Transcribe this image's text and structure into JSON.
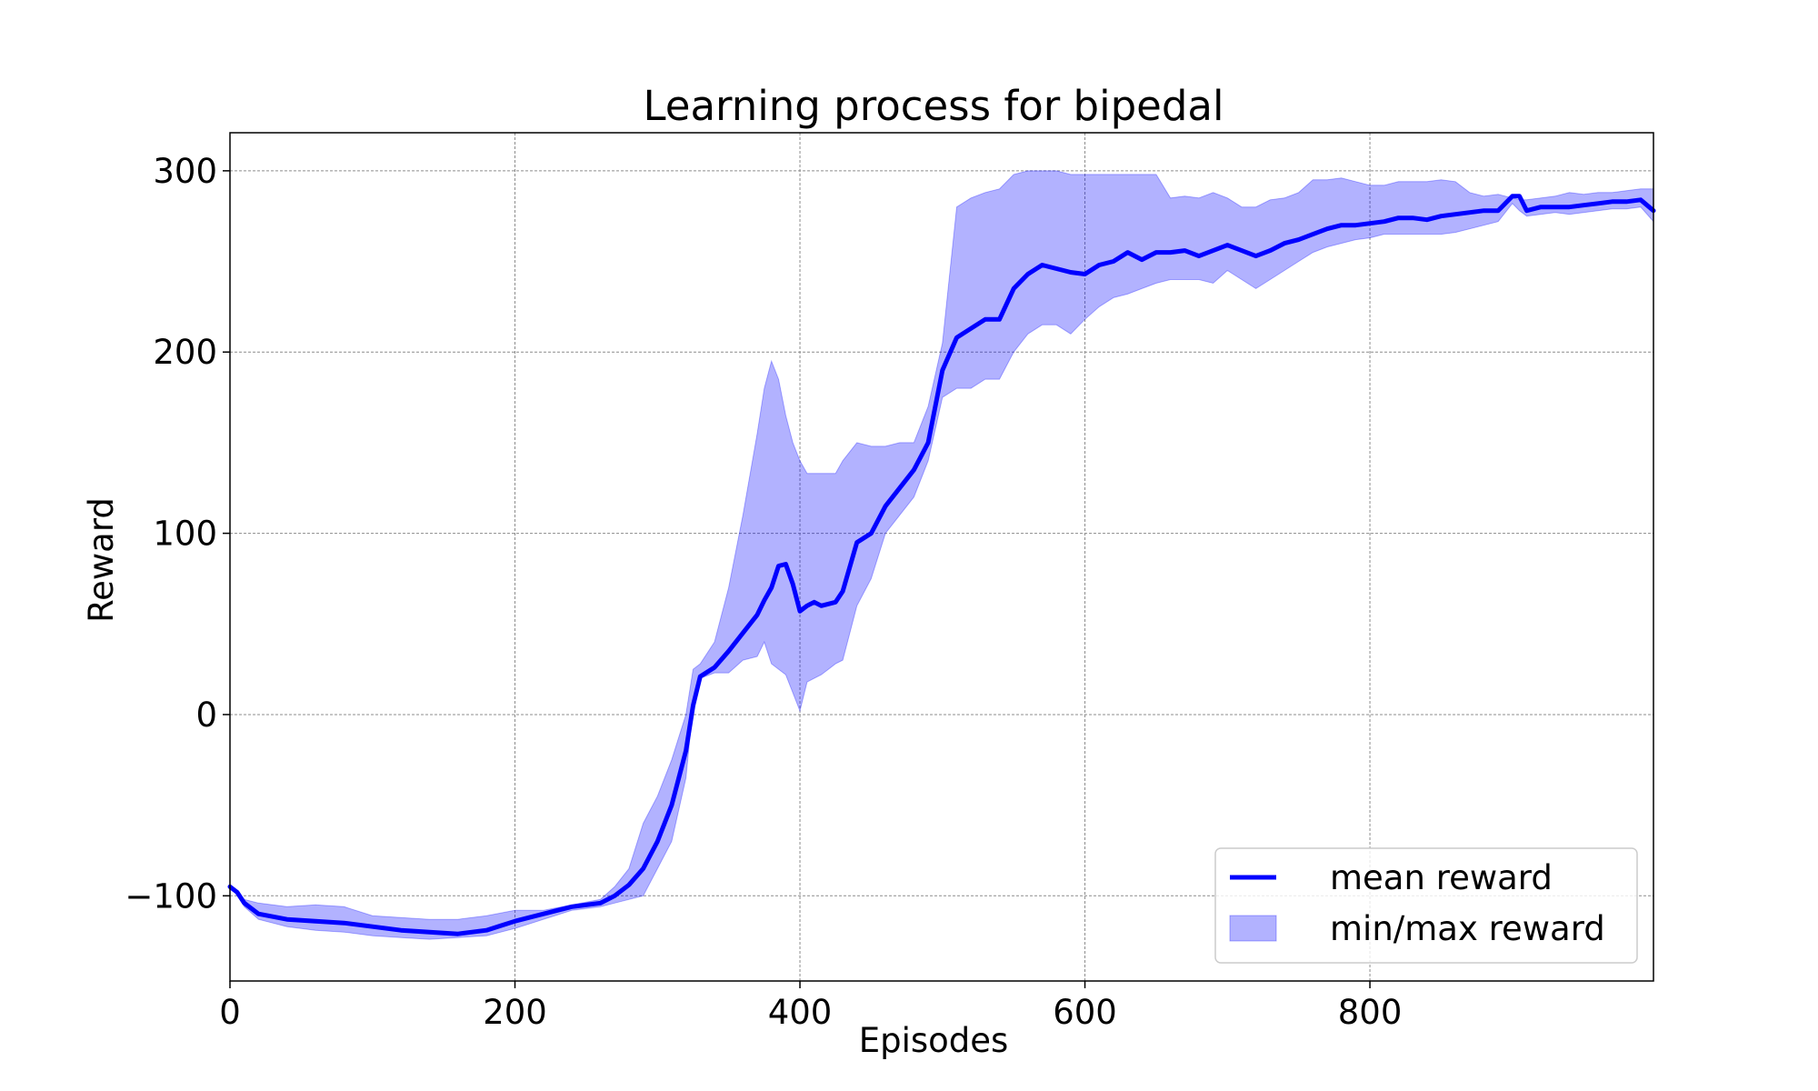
{
  "chart_data": {
    "type": "area",
    "title": "Learning process for bipedal",
    "xlabel": "Episodes",
    "ylabel": "Reward",
    "xlim": [
      0,
      999
    ],
    "ylim": [
      -147,
      321
    ],
    "xticks": [
      0,
      200,
      400,
      600,
      800
    ],
    "yticks": [
      -100,
      0,
      100,
      200,
      300
    ],
    "xtick_labels": [
      "0",
      "200",
      "400",
      "600",
      "800"
    ],
    "ytick_labels": [
      "−100",
      "0",
      "100",
      "200",
      "300"
    ],
    "grid": true,
    "legend_position": "lower-right",
    "series": [
      {
        "name": "mean reward",
        "kind": "line",
        "color": "#0000ff",
        "x": [
          0,
          5,
          10,
          20,
          40,
          60,
          80,
          100,
          120,
          140,
          160,
          180,
          200,
          220,
          240,
          260,
          270,
          280,
          290,
          300,
          310,
          320,
          325,
          330,
          340,
          350,
          360,
          370,
          375,
          380,
          385,
          390,
          395,
          400,
          405,
          410,
          415,
          420,
          425,
          430,
          440,
          450,
          460,
          470,
          480,
          490,
          500,
          510,
          520,
          530,
          540,
          550,
          560,
          570,
          580,
          590,
          600,
          610,
          620,
          630,
          640,
          650,
          660,
          670,
          680,
          690,
          700,
          710,
          720,
          730,
          740,
          750,
          760,
          770,
          780,
          790,
          800,
          810,
          820,
          830,
          840,
          850,
          860,
          870,
          880,
          890,
          900,
          905,
          910,
          920,
          930,
          940,
          950,
          960,
          970,
          980,
          990,
          999
        ],
        "y": [
          -95,
          -98,
          -104,
          -110,
          -113,
          -114,
          -115,
          -117,
          -119,
          -120,
          -121,
          -119,
          -114,
          -110,
          -106,
          -104,
          -100,
          -94,
          -85,
          -70,
          -50,
          -20,
          5,
          21,
          26,
          35,
          45,
          55,
          63,
          70,
          82,
          83,
          72,
          57,
          60,
          62,
          60,
          61,
          62,
          68,
          95,
          100,
          115,
          125,
          135,
          150,
          190,
          208,
          213,
          218,
          218,
          235,
          243,
          248,
          246,
          244,
          243,
          248,
          250,
          255,
          251,
          255,
          255,
          256,
          253,
          256,
          259,
          256,
          253,
          256,
          260,
          262,
          265,
          268,
          270,
          270,
          271,
          272,
          274,
          274,
          273,
          275,
          276,
          277,
          278,
          278,
          286,
          286,
          278,
          280,
          280,
          280,
          281,
          282,
          283,
          283,
          284,
          278
        ]
      },
      {
        "name": "min/max reward",
        "kind": "band",
        "color": "#0000ff",
        "x": [
          0,
          5,
          10,
          20,
          40,
          60,
          80,
          100,
          120,
          140,
          160,
          180,
          200,
          220,
          240,
          260,
          270,
          280,
          290,
          300,
          310,
          320,
          325,
          330,
          340,
          350,
          360,
          370,
          375,
          380,
          385,
          390,
          395,
          400,
          405,
          410,
          415,
          420,
          425,
          430,
          440,
          450,
          460,
          470,
          480,
          490,
          500,
          510,
          520,
          530,
          540,
          550,
          560,
          570,
          580,
          590,
          600,
          610,
          620,
          630,
          640,
          650,
          660,
          670,
          680,
          690,
          700,
          710,
          720,
          730,
          740,
          750,
          760,
          770,
          780,
          790,
          800,
          810,
          820,
          830,
          840,
          850,
          860,
          870,
          880,
          890,
          900,
          905,
          910,
          920,
          930,
          940,
          950,
          960,
          970,
          980,
          990,
          999
        ],
        "y_min": [
          -95,
          -99,
          -106,
          -113,
          -117,
          -119,
          -120,
          -122,
          -123,
          -124,
          -123,
          -122,
          -118,
          -113,
          -108,
          -106,
          -104,
          -102,
          -100,
          -85,
          -70,
          -35,
          5,
          20,
          23,
          23,
          30,
          32,
          40,
          28,
          25,
          22,
          12,
          2,
          18,
          20,
          22,
          25,
          28,
          30,
          60,
          75,
          100,
          110,
          120,
          140,
          175,
          180,
          180,
          185,
          185,
          200,
          210,
          215,
          215,
          210,
          218,
          225,
          230,
          232,
          235,
          238,
          240,
          240,
          240,
          238,
          245,
          240,
          235,
          240,
          245,
          250,
          255,
          258,
          260,
          262,
          263,
          265,
          265,
          265,
          265,
          265,
          266,
          268,
          270,
          272,
          282,
          278,
          275,
          276,
          277,
          276,
          277,
          278,
          279,
          279,
          280,
          272
        ],
        "y_max": [
          -95,
          -97,
          -102,
          -104,
          -106,
          -105,
          -106,
          -111,
          -112,
          -113,
          -113,
          -111,
          -108,
          -108,
          -105,
          -102,
          -95,
          -85,
          -60,
          -45,
          -25,
          0,
          25,
          28,
          40,
          70,
          110,
          155,
          180,
          195,
          185,
          165,
          150,
          140,
          133,
          133,
          133,
          133,
          133,
          140,
          150,
          148,
          148,
          150,
          150,
          170,
          205,
          280,
          285,
          288,
          290,
          298,
          300,
          300,
          300,
          298,
          298,
          298,
          298,
          298,
          298,
          298,
          285,
          286,
          285,
          288,
          285,
          280,
          280,
          284,
          285,
          288,
          295,
          295,
          296,
          294,
          292,
          292,
          294,
          294,
          294,
          295,
          294,
          288,
          286,
          287,
          285,
          284,
          284,
          285,
          286,
          288,
          287,
          288,
          288,
          289,
          290,
          290
        ]
      }
    ]
  }
}
